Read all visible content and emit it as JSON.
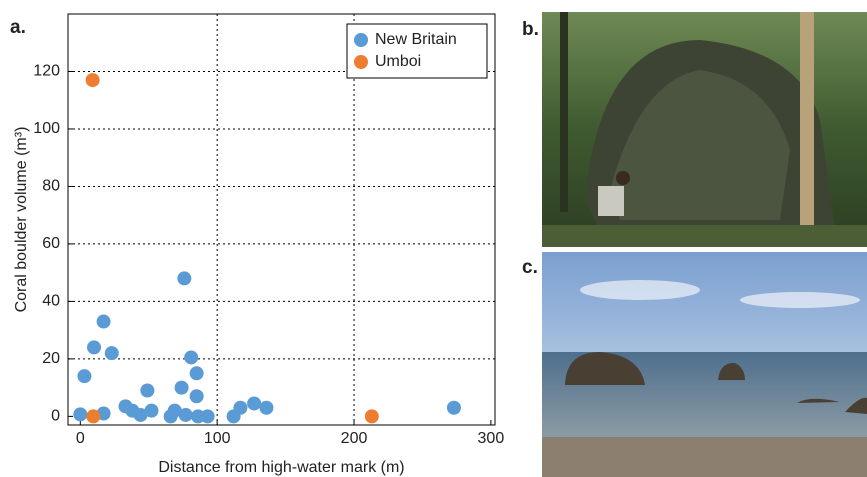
{
  "chart_data": {
    "type": "scatter",
    "panel_label": "a.",
    "x_label": "Distance from high-water mark (m)",
    "y_label": "Coral boulder volume (m³)",
    "xlim": [
      -9,
      303
    ],
    "ylim": [
      -3,
      140
    ],
    "xticks": [
      0,
      100,
      200,
      300
    ],
    "yticks": [
      0,
      20,
      40,
      60,
      80,
      100,
      120
    ],
    "grid": true,
    "legend": "upper right",
    "series": [
      {
        "name": "New Britain",
        "color": "#5b9bd5",
        "x": [
          0,
          3,
          10,
          17,
          17,
          23,
          33,
          38,
          44,
          49,
          52,
          66,
          69,
          74,
          76,
          77,
          81,
          85,
          85,
          86,
          93,
          112,
          117,
          127,
          136,
          273
        ],
        "values": [
          0.7,
          14,
          24,
          33,
          1,
          22,
          3.5,
          2,
          0.5,
          9,
          2,
          0,
          2,
          10,
          48,
          0.5,
          20.5,
          15,
          7,
          0,
          0,
          0,
          3,
          4.5,
          3,
          3
        ]
      },
      {
        "name": "Umboi",
        "color": "#ed7d31",
        "x": [
          9,
          9.5,
          213
        ],
        "values": [
          117,
          0,
          0
        ]
      }
    ]
  },
  "photos": [
    {
      "label": "b."
    },
    {
      "label": "c."
    }
  ]
}
